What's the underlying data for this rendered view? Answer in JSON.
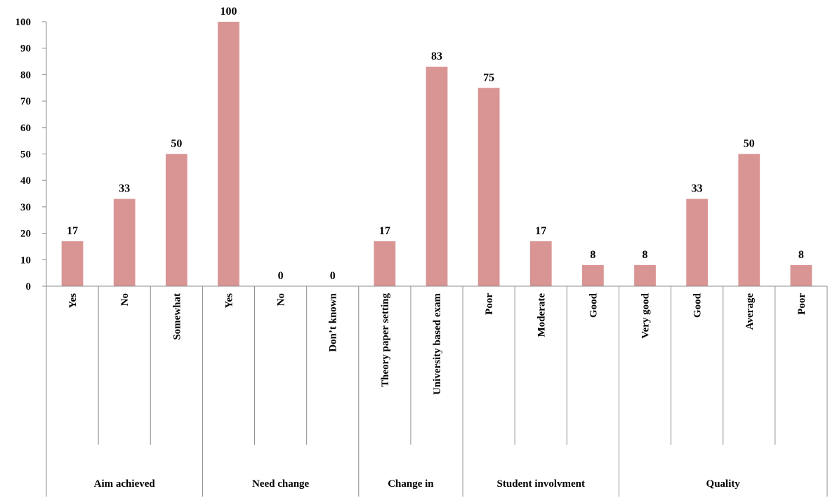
{
  "chart_data": {
    "type": "bar",
    "ylim": [
      0,
      100
    ],
    "yticks": [
      0,
      10,
      20,
      30,
      40,
      50,
      60,
      70,
      80,
      90,
      100
    ],
    "grid": false,
    "bar_color": "#d99594",
    "groups": [
      {
        "label": "Aim achieved",
        "categories": [
          "Yes",
          "No",
          "Somewhat"
        ],
        "values": [
          17,
          33,
          50
        ]
      },
      {
        "label": "Need change",
        "categories": [
          "Yes",
          "No",
          "Don’t known"
        ],
        "values": [
          100,
          0,
          0
        ]
      },
      {
        "label": "Change in",
        "categories": [
          "Theory paper setting",
          "University based exam"
        ],
        "values": [
          17,
          83
        ]
      },
      {
        "label": "Student involvment",
        "categories": [
          "Poor",
          "Moderate",
          "Good"
        ],
        "values": [
          75,
          17,
          8
        ]
      },
      {
        "label": "Quality",
        "categories": [
          "Very good",
          "Good",
          "Average",
          "Poor"
        ],
        "values": [
          8,
          33,
          50,
          8
        ]
      }
    ]
  }
}
